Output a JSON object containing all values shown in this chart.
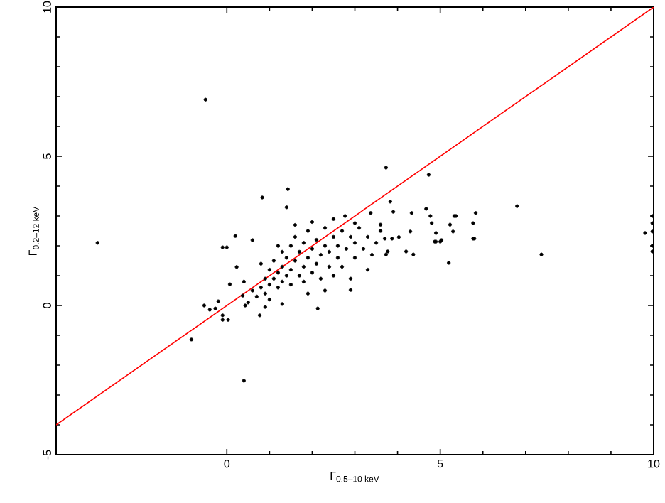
{
  "chart_data": {
    "type": "scatter",
    "xlabel": "Γ$_{0.5–10 keV}$",
    "ylabel": "Γ$_{0.2–12 keV}$",
    "xlim": [
      -4,
      10
    ],
    "ylim": [
      -5,
      10
    ],
    "xticks": [
      0,
      5,
      10
    ],
    "yticks": [
      -5,
      0,
      5,
      10
    ],
    "marker": "circle",
    "series": [
      {
        "color": "#000000",
        "x": [
          -0.5,
          -3.03,
          -0.83,
          -0.53,
          -0.4,
          -0.27,
          -0.2,
          -0.1,
          -0.1,
          0.0,
          0.4,
          1.43,
          0.83,
          1.4,
          3.73,
          4.73,
          3.83,
          0.2,
          0.6,
          0.23,
          0.07,
          -0.1,
          0.03,
          0.77,
          2.13,
          2.9,
          1.3,
          0.9,
          0.43,
          0.37,
          4.33,
          4.67,
          5.33,
          5.83,
          5.77,
          5.2,
          4.87,
          5.0,
          5.23,
          4.2,
          4.37,
          4.3,
          4.03,
          3.77,
          3.73,
          3.7,
          3.87,
          3.6,
          3.9,
          3.37,
          3.0,
          2.77,
          4.77,
          4.8,
          4.9,
          4.9,
          5.03,
          5.3,
          5.37,
          5.77,
          5.8,
          6.8,
          7.37,
          9.8,
          9.97,
          9.97,
          9.97,
          9.97,
          9.97,
          0.6,
          0.7,
          0.8,
          0.9,
          0.9,
          1.0,
          1.0,
          1.1,
          1.1,
          1.2,
          1.2,
          1.3,
          1.3,
          1.3,
          1.4,
          1.4,
          1.5,
          1.5,
          1.5,
          1.6,
          1.6,
          1.7,
          1.7,
          1.8,
          1.8,
          1.8,
          1.9,
          1.9,
          2.0,
          2.0,
          2.1,
          2.1,
          2.2,
          2.2,
          2.3,
          2.3,
          2.4,
          2.4,
          2.5,
          2.5,
          2.6,
          2.6,
          2.7,
          2.7,
          2.8,
          2.9,
          3.0,
          3.0,
          3.1,
          3.2,
          3.3,
          3.4,
          3.5,
          3.6,
          2.0,
          1.6,
          1.2,
          0.8,
          2.9,
          3.3,
          1.0,
          0.5,
          0.4,
          2.5,
          2.3,
          1.9
        ],
        "values": [
          6.9,
          2.1,
          -1.14,
          0.0,
          -0.14,
          -0.1,
          0.14,
          -0.33,
          1.95,
          1.95,
          -2.52,
          3.9,
          3.62,
          3.29,
          4.62,
          4.38,
          3.48,
          2.33,
          2.19,
          1.29,
          0.71,
          -0.48,
          -0.48,
          -0.33,
          -0.1,
          0.52,
          0.05,
          -0.05,
          0.0,
          0.33,
          3.1,
          3.24,
          3.0,
          3.1,
          2.24,
          1.43,
          2.14,
          2.14,
          2.71,
          1.81,
          1.71,
          2.48,
          2.29,
          1.81,
          1.71,
          2.24,
          2.24,
          2.71,
          3.14,
          3.1,
          2.76,
          3.0,
          3.0,
          2.76,
          2.43,
          2.14,
          2.19,
          2.48,
          3.0,
          2.76,
          2.24,
          3.33,
          1.71,
          2.43,
          3.0,
          2.76,
          2.48,
          2.0,
          1.81,
          0.5,
          0.3,
          0.6,
          0.9,
          0.4,
          1.2,
          0.7,
          0.9,
          1.5,
          0.6,
          1.1,
          1.8,
          1.3,
          0.8,
          1.0,
          1.6,
          2.0,
          1.2,
          0.7,
          1.5,
          2.3,
          1.0,
          1.8,
          1.3,
          2.1,
          0.8,
          1.6,
          2.5,
          1.1,
          1.9,
          1.4,
          2.2,
          1.7,
          0.9,
          2.0,
          2.6,
          1.3,
          1.8,
          2.3,
          1.0,
          1.6,
          2.0,
          2.5,
          1.3,
          1.9,
          2.3,
          1.6,
          2.1,
          2.6,
          1.9,
          2.3,
          1.7,
          2.1,
          2.5,
          2.8,
          2.7,
          2.0,
          1.4,
          0.9,
          1.2,
          0.2,
          0.1,
          0.8,
          2.9,
          0.5,
          0.4
        ]
      },
      {
        "type": "line",
        "color": "#ff0000",
        "x": [
          -4,
          10
        ],
        "values": [
          -4,
          10
        ],
        "line_style": "solid",
        "marker": "none"
      }
    ]
  }
}
